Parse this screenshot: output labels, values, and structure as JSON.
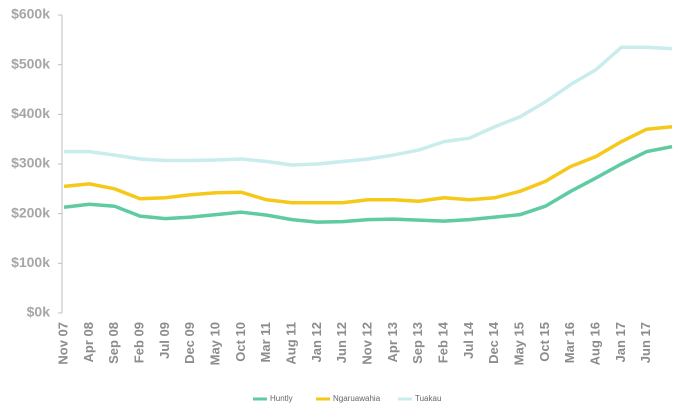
{
  "chart_data": {
    "type": "line",
    "categories": [
      "Nov 07",
      "Apr 08",
      "Sep 08",
      "Feb 09",
      "Jul 09",
      "Dec 09",
      "May 10",
      "Oct 10",
      "Mar 11",
      "Aug 11",
      "Jan 12",
      "Jun 12",
      "Nov 12",
      "Apr 13",
      "Sep 13",
      "Feb 14",
      "Jul 14",
      "Dec 14",
      "May 15",
      "Oct 15",
      "Mar 16",
      "Aug 16",
      "Jan 17",
      "Jun 17",
      null
    ],
    "series": [
      {
        "name": "Huntly",
        "color": "#5ecba1",
        "values": [
          213000,
          219000,
          215000,
          195000,
          190000,
          193000,
          198000,
          203000,
          197000,
          188000,
          183000,
          184000,
          188000,
          189000,
          187000,
          185000,
          188000,
          193000,
          198000,
          215000,
          245000,
          272000,
          300000,
          325000,
          335000
        ]
      },
      {
        "name": "Ngaruawahia",
        "color": "#f5c81a",
        "values": [
          255000,
          260000,
          250000,
          230000,
          232000,
          238000,
          242000,
          243000,
          228000,
          222000,
          222000,
          222000,
          228000,
          228000,
          225000,
          232000,
          228000,
          232000,
          245000,
          265000,
          295000,
          315000,
          345000,
          370000,
          375000
        ]
      },
      {
        "name": "Tuakau",
        "color": "#c9ecec",
        "values": [
          325000,
          325000,
          318000,
          310000,
          307000,
          307000,
          308000,
          310000,
          305000,
          298000,
          300000,
          305000,
          310000,
          318000,
          328000,
          345000,
          352000,
          375000,
          395000,
          425000,
          460000,
          490000,
          535000,
          535000,
          532000
        ]
      }
    ],
    "ylim": [
      0,
      600000
    ],
    "yticks": [
      {
        "value": 0,
        "label": "$0k"
      },
      {
        "value": 100000,
        "label": "$100k"
      },
      {
        "value": 200000,
        "label": "$200k"
      },
      {
        "value": 300000,
        "label": "$300k"
      },
      {
        "value": 400000,
        "label": "$400k"
      },
      {
        "value": 500000,
        "label": "$500k"
      },
      {
        "value": 600000,
        "label": "$600k"
      }
    ],
    "legend": "bottom"
  }
}
